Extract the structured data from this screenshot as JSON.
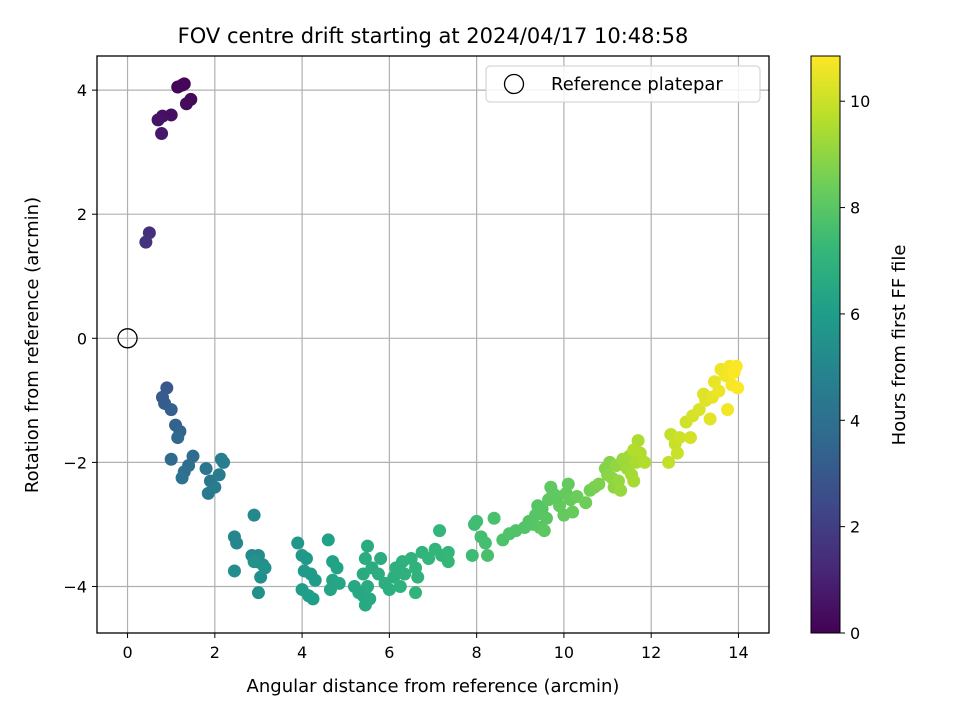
{
  "chart_data": {
    "type": "scatter",
    "title": "FOV centre drift starting at 2024/04/17 10:48:58",
    "xlabel": "Angular distance from reference (arcmin)",
    "ylabel": "Rotation from reference (arcmin)",
    "xlim": [
      -0.7,
      14.7
    ],
    "ylim": [
      -4.75,
      4.55
    ],
    "xticks": [
      0,
      2,
      4,
      6,
      8,
      10,
      12,
      14
    ],
    "xtick_labels": [
      "0",
      "2",
      "4",
      "6",
      "8",
      "10",
      "12",
      "14"
    ],
    "yticks": [
      -4,
      -2,
      0,
      2,
      4
    ],
    "ytick_labels": [
      "−4",
      "−2",
      "0",
      "2",
      "4"
    ],
    "grid": true,
    "legend": {
      "placement": "top-right",
      "entries": [
        "Reference platepar"
      ]
    },
    "reference_point": {
      "x": 0,
      "y": 0,
      "label": "Reference platepar"
    },
    "colorbar": {
      "label": "Hours from first FF file",
      "range": [
        0,
        10.85
      ],
      "ticks": [
        0,
        2,
        4,
        6,
        8,
        10
      ],
      "tick_labels": [
        "0",
        "2",
        "4",
        "6",
        "8",
        "10"
      ],
      "colormap": "viridis",
      "colormap_stops": [
        "#440154",
        "#482878",
        "#3e4989",
        "#31688e",
        "#26828e",
        "#1f9e89",
        "#35b779",
        "#6ece58",
        "#b5de2b",
        "#fde725"
      ]
    },
    "series": [
      {
        "points": [
          {
            "x": 1.15,
            "y": 4.05,
            "h": 0.1
          },
          {
            "x": 1.3,
            "y": 4.1,
            "h": 0.15
          },
          {
            "x": 1.25,
            "y": 4.08,
            "h": 0.2
          },
          {
            "x": 1.45,
            "y": 3.85,
            "h": 0.25
          },
          {
            "x": 1.35,
            "y": 3.78,
            "h": 0.3
          },
          {
            "x": 1.0,
            "y": 3.6,
            "h": 0.4
          },
          {
            "x": 0.8,
            "y": 3.58,
            "h": 0.5
          },
          {
            "x": 0.7,
            "y": 3.52,
            "h": 0.6
          },
          {
            "x": 0.78,
            "y": 3.3,
            "h": 0.7
          },
          {
            "x": 0.5,
            "y": 1.7,
            "h": 1.5
          },
          {
            "x": 0.42,
            "y": 1.55,
            "h": 1.6
          },
          {
            "x": 0.9,
            "y": -0.8,
            "h": 3.0
          },
          {
            "x": 0.8,
            "y": -0.95,
            "h": 3.1
          },
          {
            "x": 0.85,
            "y": -1.05,
            "h": 3.2
          },
          {
            "x": 1.0,
            "y": -1.15,
            "h": 3.3
          },
          {
            "x": 1.1,
            "y": -1.4,
            "h": 3.4
          },
          {
            "x": 1.2,
            "y": -1.5,
            "h": 3.5
          },
          {
            "x": 1.15,
            "y": -1.6,
            "h": 3.6
          },
          {
            "x": 1.0,
            "y": -1.95,
            "h": 3.7
          },
          {
            "x": 1.5,
            "y": -1.9,
            "h": 3.8
          },
          {
            "x": 1.4,
            "y": -2.05,
            "h": 3.9
          },
          {
            "x": 1.3,
            "y": -2.15,
            "h": 4.0
          },
          {
            "x": 1.25,
            "y": -2.25,
            "h": 4.1
          },
          {
            "x": 1.8,
            "y": -2.1,
            "h": 4.2
          },
          {
            "x": 1.9,
            "y": -2.3,
            "h": 4.3
          },
          {
            "x": 1.85,
            "y": -2.5,
            "h": 4.4
          },
          {
            "x": 2.0,
            "y": -2.4,
            "h": 4.5
          },
          {
            "x": 2.1,
            "y": -2.2,
            "h": 4.55
          },
          {
            "x": 2.2,
            "y": -2.0,
            "h": 4.6
          },
          {
            "x": 2.15,
            "y": -1.95,
            "h": 4.65
          },
          {
            "x": 2.45,
            "y": -3.2,
            "h": 5.0
          },
          {
            "x": 2.5,
            "y": -3.3,
            "h": 5.05
          },
          {
            "x": 2.9,
            "y": -2.85,
            "h": 5.1
          },
          {
            "x": 2.85,
            "y": -3.5,
            "h": 5.15
          },
          {
            "x": 2.95,
            "y": -3.6,
            "h": 5.2
          },
          {
            "x": 3.0,
            "y": -3.5,
            "h": 5.25
          },
          {
            "x": 3.1,
            "y": -3.65,
            "h": 5.3
          },
          {
            "x": 2.45,
            "y": -3.75,
            "h": 5.35
          },
          {
            "x": 3.05,
            "y": -3.85,
            "h": 5.4
          },
          {
            "x": 3.0,
            "y": -4.1,
            "h": 5.45
          },
          {
            "x": 2.9,
            "y": -3.6,
            "h": 5.5
          },
          {
            "x": 3.15,
            "y": -3.7,
            "h": 5.55
          },
          {
            "x": 3.9,
            "y": -3.3,
            "h": 5.7
          },
          {
            "x": 4.0,
            "y": -3.5,
            "h": 5.75
          },
          {
            "x": 4.1,
            "y": -3.55,
            "h": 5.8
          },
          {
            "x": 4.05,
            "y": -3.75,
            "h": 5.85
          },
          {
            "x": 4.2,
            "y": -3.8,
            "h": 5.9
          },
          {
            "x": 4.3,
            "y": -3.9,
            "h": 5.95
          },
          {
            "x": 4.0,
            "y": -4.05,
            "h": 6.0
          },
          {
            "x": 4.15,
            "y": -4.15,
            "h": 6.05
          },
          {
            "x": 4.25,
            "y": -4.2,
            "h": 6.1
          },
          {
            "x": 4.6,
            "y": -3.25,
            "h": 6.15
          },
          {
            "x": 4.7,
            "y": -3.6,
            "h": 6.2
          },
          {
            "x": 4.8,
            "y": -3.7,
            "h": 6.25
          },
          {
            "x": 4.7,
            "y": -3.9,
            "h": 6.3
          },
          {
            "x": 4.65,
            "y": -4.05,
            "h": 6.35
          },
          {
            "x": 4.85,
            "y": -3.95,
            "h": 6.4
          },
          {
            "x": 5.2,
            "y": -4.0,
            "h": 6.45
          },
          {
            "x": 5.3,
            "y": -4.1,
            "h": 6.5
          },
          {
            "x": 5.4,
            "y": -4.15,
            "h": 6.52
          },
          {
            "x": 5.45,
            "y": -4.3,
            "h": 6.55
          },
          {
            "x": 5.55,
            "y": -4.2,
            "h": 6.58
          },
          {
            "x": 5.5,
            "y": -4.0,
            "h": 6.6
          },
          {
            "x": 5.4,
            "y": -3.8,
            "h": 6.62
          },
          {
            "x": 5.6,
            "y": -3.7,
            "h": 6.65
          },
          {
            "x": 5.45,
            "y": -3.55,
            "h": 6.68
          },
          {
            "x": 5.5,
            "y": -3.35,
            "h": 6.7
          },
          {
            "x": 5.8,
            "y": -3.55,
            "h": 6.72
          },
          {
            "x": 5.75,
            "y": -3.8,
            "h": 6.75
          },
          {
            "x": 5.9,
            "y": -3.95,
            "h": 6.78
          },
          {
            "x": 6.0,
            "y": -4.05,
            "h": 6.8
          },
          {
            "x": 6.1,
            "y": -3.85,
            "h": 6.82
          },
          {
            "x": 6.15,
            "y": -3.7,
            "h": 6.85
          },
          {
            "x": 6.3,
            "y": -3.6,
            "h": 6.88
          },
          {
            "x": 6.35,
            "y": -3.8,
            "h": 6.9
          },
          {
            "x": 6.25,
            "y": -4.0,
            "h": 6.92
          },
          {
            "x": 6.5,
            "y": -3.55,
            "h": 6.95
          },
          {
            "x": 6.6,
            "y": -3.7,
            "h": 6.98
          },
          {
            "x": 6.65,
            "y": -3.85,
            "h": 7.0
          },
          {
            "x": 6.6,
            "y": -4.1,
            "h": 7.02
          },
          {
            "x": 6.75,
            "y": -3.45,
            "h": 7.05
          },
          {
            "x": 6.9,
            "y": -3.55,
            "h": 7.08
          },
          {
            "x": 7.05,
            "y": -3.4,
            "h": 7.1
          },
          {
            "x": 7.15,
            "y": -3.1,
            "h": 7.12
          },
          {
            "x": 7.2,
            "y": -3.5,
            "h": 7.15
          },
          {
            "x": 7.35,
            "y": -3.45,
            "h": 7.18
          },
          {
            "x": 7.35,
            "y": -3.6,
            "h": 7.2
          },
          {
            "x": 7.9,
            "y": -3.5,
            "h": 7.4
          },
          {
            "x": 7.95,
            "y": -3.0,
            "h": 7.45
          },
          {
            "x": 8.0,
            "y": -2.95,
            "h": 7.5
          },
          {
            "x": 8.1,
            "y": -3.2,
            "h": 7.55
          },
          {
            "x": 8.2,
            "y": -3.3,
            "h": 7.6
          },
          {
            "x": 8.25,
            "y": -3.5,
            "h": 7.65
          },
          {
            "x": 8.4,
            "y": -2.9,
            "h": 7.7
          },
          {
            "x": 8.6,
            "y": -3.25,
            "h": 7.75
          },
          {
            "x": 8.75,
            "y": -3.15,
            "h": 7.8
          },
          {
            "x": 8.9,
            "y": -3.1,
            "h": 7.82
          },
          {
            "x": 9.1,
            "y": -3.05,
            "h": 7.85
          },
          {
            "x": 9.2,
            "y": -2.95,
            "h": 7.88
          },
          {
            "x": 9.3,
            "y": -3.0,
            "h": 7.9
          },
          {
            "x": 9.4,
            "y": -2.7,
            "h": 7.92
          },
          {
            "x": 9.35,
            "y": -2.85,
            "h": 7.95
          },
          {
            "x": 9.5,
            "y": -2.75,
            "h": 7.98
          },
          {
            "x": 9.45,
            "y": -3.05,
            "h": 8.0
          },
          {
            "x": 9.6,
            "y": -2.9,
            "h": 8.02
          },
          {
            "x": 9.55,
            "y": -3.1,
            "h": 8.05
          },
          {
            "x": 9.65,
            "y": -2.6,
            "h": 8.08
          },
          {
            "x": 9.7,
            "y": -2.4,
            "h": 8.1
          },
          {
            "x": 9.75,
            "y": -2.5,
            "h": 8.12
          },
          {
            "x": 9.85,
            "y": -2.55,
            "h": 8.15
          },
          {
            "x": 9.9,
            "y": -2.7,
            "h": 8.18
          },
          {
            "x": 10.0,
            "y": -2.85,
            "h": 8.2
          },
          {
            "x": 10.05,
            "y": -2.5,
            "h": 8.22
          },
          {
            "x": 10.1,
            "y": -2.35,
            "h": 8.25
          },
          {
            "x": 10.15,
            "y": -2.6,
            "h": 8.28
          },
          {
            "x": 10.2,
            "y": -2.8,
            "h": 8.3
          },
          {
            "x": 10.3,
            "y": -2.55,
            "h": 8.35
          },
          {
            "x": 10.5,
            "y": -2.65,
            "h": 8.4
          },
          {
            "x": 10.6,
            "y": -2.45,
            "h": 8.5
          },
          {
            "x": 10.7,
            "y": -2.4,
            "h": 8.6
          },
          {
            "x": 10.8,
            "y": -2.35,
            "h": 8.7
          },
          {
            "x": 10.95,
            "y": -2.1,
            "h": 8.8
          },
          {
            "x": 11.05,
            "y": -2.0,
            "h": 8.85
          },
          {
            "x": 11.0,
            "y": -2.2,
            "h": 8.9
          },
          {
            "x": 11.1,
            "y": -2.25,
            "h": 8.95
          },
          {
            "x": 11.15,
            "y": -2.4,
            "h": 9.0
          },
          {
            "x": 11.2,
            "y": -2.05,
            "h": 9.05
          },
          {
            "x": 11.25,
            "y": -2.3,
            "h": 9.1
          },
          {
            "x": 11.3,
            "y": -2.45,
            "h": 9.15
          },
          {
            "x": 11.35,
            "y": -1.95,
            "h": 9.2
          },
          {
            "x": 11.45,
            "y": -2.1,
            "h": 9.25
          },
          {
            "x": 11.5,
            "y": -1.9,
            "h": 9.3
          },
          {
            "x": 11.55,
            "y": -2.2,
            "h": 9.35
          },
          {
            "x": 11.6,
            "y": -2.3,
            "h": 9.4
          },
          {
            "x": 11.65,
            "y": -2.0,
            "h": 9.45
          },
          {
            "x": 11.7,
            "y": -1.65,
            "h": 9.5
          },
          {
            "x": 11.75,
            "y": -1.85,
            "h": 9.55
          },
          {
            "x": 11.85,
            "y": -2.0,
            "h": 9.6
          },
          {
            "x": 11.6,
            "y": -1.8,
            "h": 9.58
          },
          {
            "x": 12.4,
            "y": -2.0,
            "h": 9.85
          },
          {
            "x": 12.45,
            "y": -1.55,
            "h": 9.9
          },
          {
            "x": 12.55,
            "y": -1.7,
            "h": 9.95
          },
          {
            "x": 12.6,
            "y": -1.85,
            "h": 10.0
          },
          {
            "x": 12.65,
            "y": -1.6,
            "h": 10.05
          },
          {
            "x": 12.8,
            "y": -1.35,
            "h": 10.1
          },
          {
            "x": 12.9,
            "y": -1.6,
            "h": 10.15
          },
          {
            "x": 12.95,
            "y": -1.25,
            "h": 10.2
          },
          {
            "x": 13.1,
            "y": -1.15,
            "h": 10.25
          },
          {
            "x": 13.2,
            "y": -0.9,
            "h": 10.3
          },
          {
            "x": 13.25,
            "y": -1.0,
            "h": 10.35
          },
          {
            "x": 13.35,
            "y": -1.3,
            "h": 10.4
          },
          {
            "x": 13.4,
            "y": -0.95,
            "h": 10.45
          },
          {
            "x": 13.45,
            "y": -0.7,
            "h": 10.5
          },
          {
            "x": 13.55,
            "y": -0.85,
            "h": 10.55
          },
          {
            "x": 13.6,
            "y": -0.5,
            "h": 10.6
          },
          {
            "x": 13.7,
            "y": -0.6,
            "h": 10.65
          },
          {
            "x": 13.75,
            "y": -1.15,
            "h": 10.68
          },
          {
            "x": 13.8,
            "y": -0.45,
            "h": 10.7
          },
          {
            "x": 13.85,
            "y": -0.75,
            "h": 10.75
          },
          {
            "x": 13.9,
            "y": -0.55,
            "h": 10.8
          },
          {
            "x": 13.95,
            "y": -0.45,
            "h": 10.82
          },
          {
            "x": 13.98,
            "y": -0.8,
            "h": 10.84
          }
        ]
      }
    ]
  }
}
